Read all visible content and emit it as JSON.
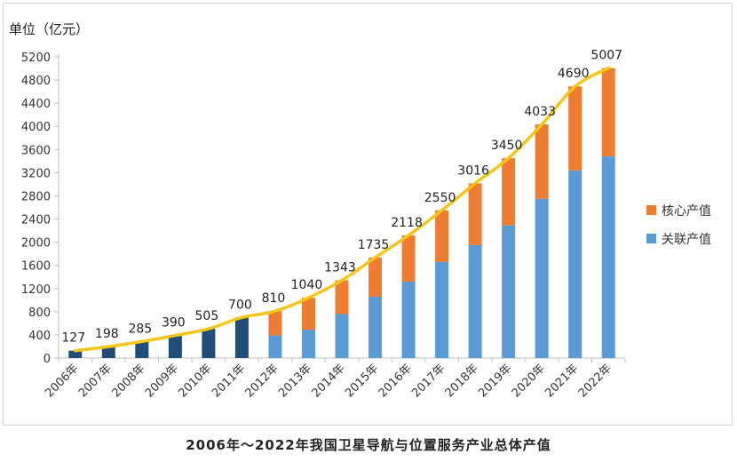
{
  "caption": "2006年～2022年我国卫星导航与位置服务产业总体产值",
  "chart_data": {
    "type": "bar",
    "unit_label": "单位（亿元）",
    "categories": [
      "2006年",
      "2007年",
      "2008年",
      "2009年",
      "2010年",
      "2011年",
      "2012年",
      "2013年",
      "2014年",
      "2015年",
      "2016年",
      "2017年",
      "2018年",
      "2019年",
      "2020年",
      "2021年",
      "2022年"
    ],
    "totals": [
      127,
      198,
      285,
      390,
      505,
      700,
      810,
      1040,
      1343,
      1735,
      2118,
      2550,
      3016,
      3450,
      4033,
      4690,
      5007
    ],
    "series": [
      {
        "name": "关联产值",
        "color": "#5b9bd5",
        "values": [
          null,
          null,
          null,
          null,
          null,
          null,
          390,
          490,
          760,
          1060,
          1320,
          1660,
          1950,
          2290,
          2750,
          3240,
          3480
        ]
      },
      {
        "name": "核心产值",
        "color": "#ed7d31",
        "values": [
          null,
          null,
          null,
          null,
          null,
          null,
          420,
          550,
          583,
          675,
          798,
          890,
          1066,
          1160,
          1283,
          1450,
          1527
        ]
      }
    ],
    "total_bar_color": "#1f4e79",
    "trend_line_color": "#f5c518",
    "ylim": [
      0,
      5200
    ],
    "yticks": [
      0,
      400,
      800,
      1200,
      1600,
      2000,
      2400,
      2800,
      3200,
      3600,
      4000,
      4400,
      4800,
      5200
    ],
    "legend": "right",
    "grid": false
  }
}
